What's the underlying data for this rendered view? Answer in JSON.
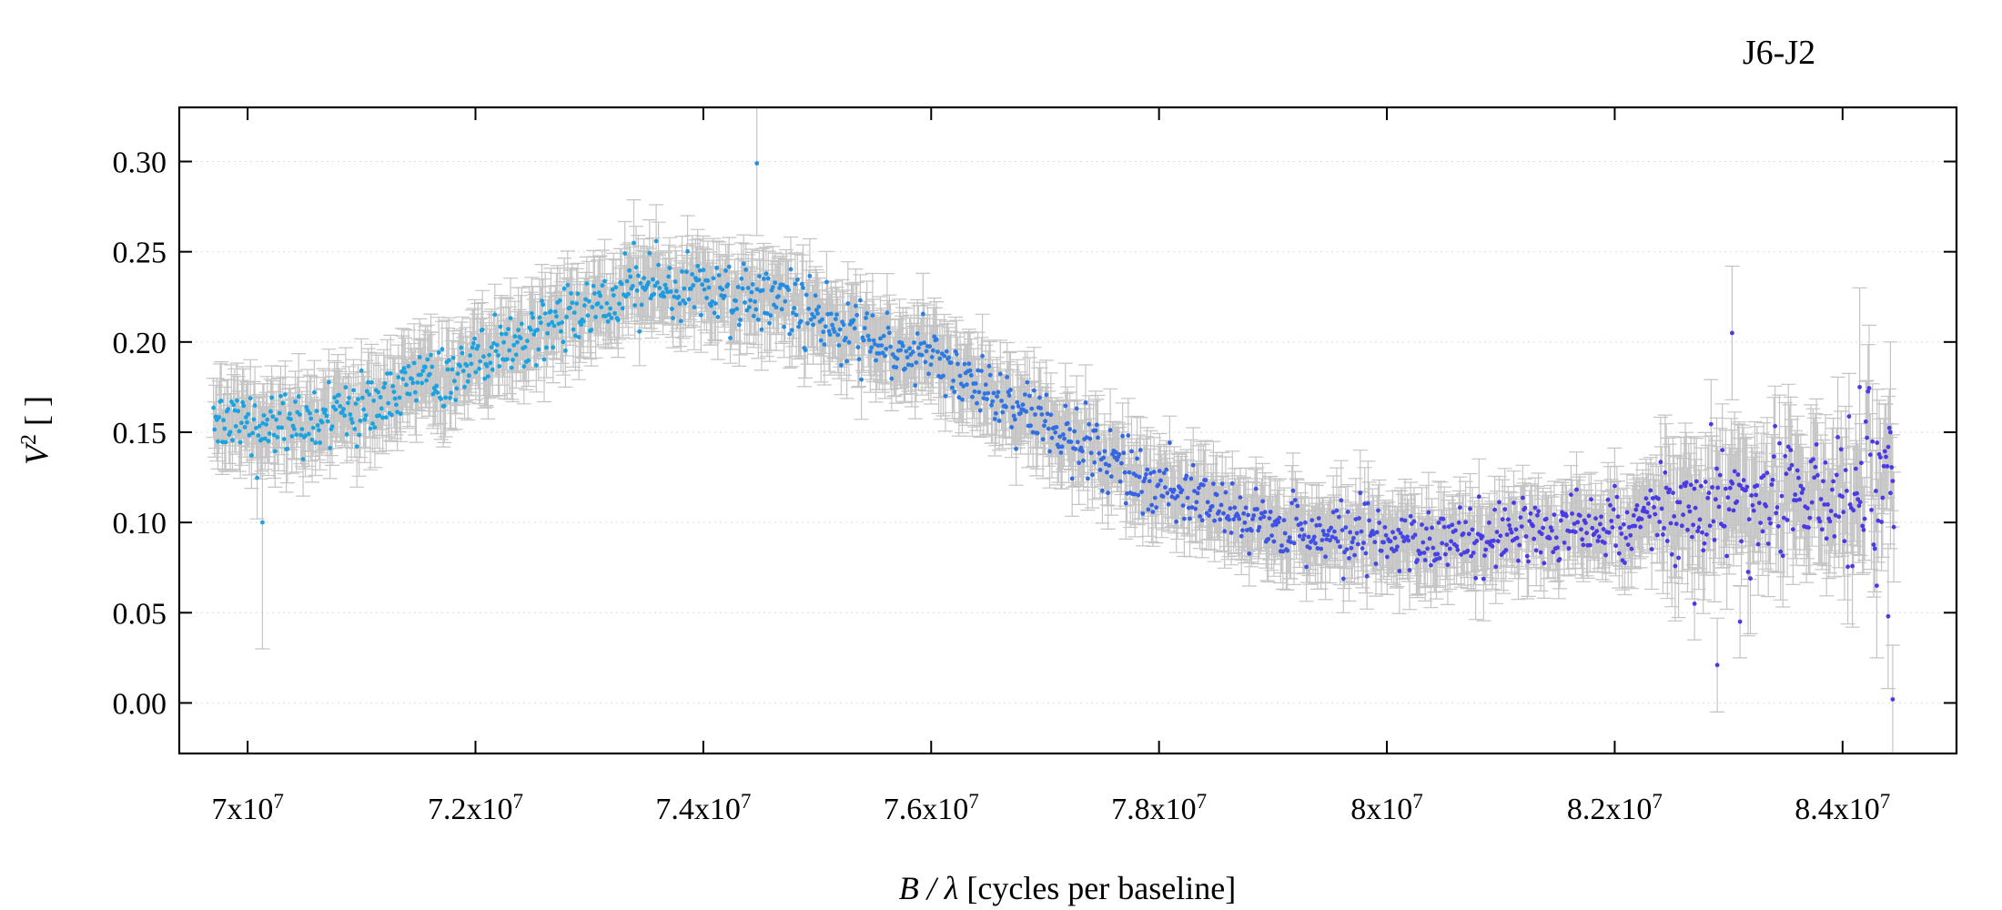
{
  "chart_data": {
    "type": "scatter",
    "title": "J6-J2",
    "xlabel_italic": "B / λ",
    "xlabel_rest": " [cycles per baseline]",
    "ylabel_base": "V",
    "ylabel_sup": "2",
    "ylabel_rest": " [ ]",
    "xlim": [
      69400000,
      85000000
    ],
    "ylim": [
      -0.028,
      0.33
    ],
    "x_ticks": [
      {
        "value": 70000000,
        "mant": "7x10",
        "exp": "7"
      },
      {
        "value": 72000000,
        "mant": "7.2x10",
        "exp": "7"
      },
      {
        "value": 74000000,
        "mant": "7.4x10",
        "exp": "7"
      },
      {
        "value": 76000000,
        "mant": "7.6x10",
        "exp": "7"
      },
      {
        "value": 78000000,
        "mant": "7.8x10",
        "exp": "7"
      },
      {
        "value": 80000000,
        "mant": "8x10",
        "exp": "7"
      },
      {
        "value": 82000000,
        "mant": "8.2x10",
        "exp": "7"
      },
      {
        "value": 84000000,
        "mant": "8.4x10",
        "exp": "7"
      }
    ],
    "y_ticks": [
      {
        "value": 0.0,
        "label": "0.00"
      },
      {
        "value": 0.05,
        "label": "0.05"
      },
      {
        "value": 0.1,
        "label": "0.10"
      },
      {
        "value": 0.15,
        "label": "0.15"
      },
      {
        "value": 0.2,
        "label": "0.20"
      },
      {
        "value": 0.25,
        "label": "0.25"
      },
      {
        "value": 0.3,
        "label": "0.30"
      }
    ],
    "grid": "horizontal dotted",
    "color_gradient": [
      "#1aa3e0",
      "#4a3ae6"
    ],
    "error_bar_color": "#c4c4c4",
    "trend": {
      "x": [
        69700000,
        70500000,
        71000000,
        72000000,
        73000000,
        73500000,
        74000000,
        74500000,
        75000000,
        75500000,
        76000000,
        76500000,
        77000000,
        77500000,
        78000000,
        78500000,
        79000000,
        79500000,
        80000000,
        80500000,
        81000000,
        81500000,
        82000000,
        82500000,
        83000000,
        83500000,
        84000000,
        84450000
      ],
      "y": [
        0.155,
        0.155,
        0.163,
        0.19,
        0.22,
        0.232,
        0.232,
        0.225,
        0.213,
        0.202,
        0.19,
        0.172,
        0.155,
        0.137,
        0.118,
        0.108,
        0.098,
        0.092,
        0.09,
        0.09,
        0.092,
        0.095,
        0.1,
        0.105,
        0.11,
        0.115,
        0.118,
        0.12
      ]
    },
    "scatter_rms": 0.013,
    "n_points": 1500,
    "outliers": [
      {
        "x": 74470000,
        "y": 0.299,
        "err": 0.04
      },
      {
        "x": 70130000,
        "y": 0.1,
        "err": 0.07
      },
      {
        "x": 83030000,
        "y": 0.205,
        "err": 0.037
      },
      {
        "x": 82900000,
        "y": 0.021,
        "err": 0.026
      },
      {
        "x": 83100000,
        "y": 0.045,
        "err": 0.02
      },
      {
        "x": 82700000,
        "y": 0.055,
        "err": 0.02
      },
      {
        "x": 84150000,
        "y": 0.175,
        "err": 0.055
      },
      {
        "x": 84420000,
        "y": 0.15,
        "err": 0.05
      },
      {
        "x": 84440000,
        "y": 0.002,
        "err": 0.03
      },
      {
        "x": 84300000,
        "y": 0.065,
        "err": 0.04
      },
      {
        "x": 84400000,
        "y": 0.048,
        "err": 0.04
      }
    ]
  }
}
